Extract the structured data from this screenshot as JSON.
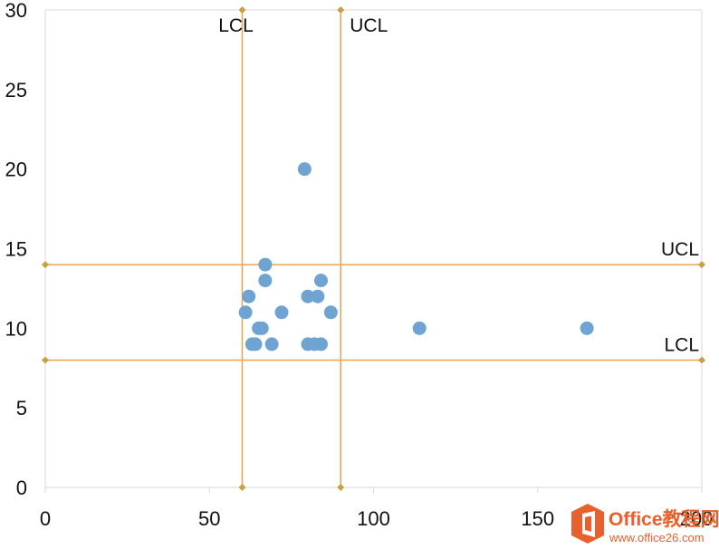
{
  "chart_data": {
    "type": "scatter",
    "title": "",
    "xlabel": "",
    "ylabel": "",
    "xlim": [
      0,
      200
    ],
    "ylim": [
      0,
      30
    ],
    "x_ticks": [
      0,
      50,
      100,
      150,
      200
    ],
    "y_ticks": [
      0,
      5,
      10,
      15,
      20,
      25,
      30
    ],
    "x_tick_labels": [
      "0",
      "50",
      "100",
      "150",
      "200"
    ],
    "y_tick_labels": [
      "0",
      "5",
      "10",
      "15",
      "20",
      "25",
      "30"
    ],
    "grid": false,
    "series": [
      {
        "color": "#6fa4d2",
        "points": [
          {
            "x": 61,
            "y": 11
          },
          {
            "x": 62,
            "y": 12
          },
          {
            "x": 63,
            "y": 9
          },
          {
            "x": 64,
            "y": 9
          },
          {
            "x": 65,
            "y": 10
          },
          {
            "x": 66,
            "y": 10
          },
          {
            "x": 67,
            "y": 13
          },
          {
            "x": 67,
            "y": 14
          },
          {
            "x": 69,
            "y": 9
          },
          {
            "x": 72,
            "y": 11
          },
          {
            "x": 79,
            "y": 20
          },
          {
            "x": 80,
            "y": 12
          },
          {
            "x": 80,
            "y": 9
          },
          {
            "x": 82,
            "y": 9
          },
          {
            "x": 83,
            "y": 12
          },
          {
            "x": 84,
            "y": 13
          },
          {
            "x": 84,
            "y": 9
          },
          {
            "x": 87,
            "y": 11
          },
          {
            "x": 114,
            "y": 10
          },
          {
            "x": 165,
            "y": 10
          }
        ]
      }
    ],
    "reference_lines": [
      {
        "orientation": "vertical",
        "value": 60,
        "label": "LCL",
        "color": "#e8a454"
      },
      {
        "orientation": "vertical",
        "value": 90,
        "label": "UCL",
        "color": "#e8a454"
      },
      {
        "orientation": "horizontal",
        "value": 14,
        "label": "UCL",
        "color": "#e8a454"
      },
      {
        "orientation": "horizontal",
        "value": 8,
        "label": "LCL",
        "color": "#e8a454"
      }
    ],
    "marker_color": "#c8a040"
  },
  "watermark": {
    "title": "Office教程网",
    "url": "www.office26.com",
    "color": "#e8602c"
  }
}
